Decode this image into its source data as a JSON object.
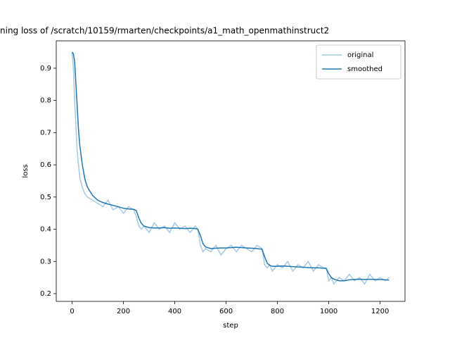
{
  "chart_data": {
    "type": "line",
    "title": "ning loss of /scratch/10159/rmarten/checkpoints/a1_math_openmathinstruct2",
    "x_label": "step",
    "y_label": "loss",
    "x": [
      0,
      5,
      10,
      15,
      20,
      25,
      30,
      40,
      50,
      60,
      80,
      100,
      120,
      140,
      160,
      180,
      200,
      220,
      240,
      250,
      260,
      270,
      280,
      300,
      320,
      340,
      360,
      380,
      400,
      420,
      440,
      460,
      480,
      490,
      500,
      510,
      520,
      540,
      560,
      580,
      600,
      620,
      640,
      660,
      680,
      700,
      720,
      740,
      750,
      760,
      770,
      780,
      800,
      820,
      840,
      860,
      880,
      900,
      920,
      940,
      960,
      980,
      990,
      1000,
      1010,
      1020,
      1040,
      1060,
      1080,
      1100,
      1120,
      1140,
      1160,
      1180,
      1200,
      1220,
      1235
    ],
    "series": [
      {
        "name": "original",
        "color": "#a6c8e3",
        "values": [
          0.95,
          0.9,
          0.8,
          0.72,
          0.64,
          0.6,
          0.56,
          0.53,
          0.51,
          0.5,
          0.49,
          0.48,
          0.47,
          0.49,
          0.46,
          0.47,
          0.45,
          0.47,
          0.46,
          0.44,
          0.41,
          0.4,
          0.41,
          0.39,
          0.42,
          0.4,
          0.41,
          0.39,
          0.42,
          0.4,
          0.41,
          0.39,
          0.41,
          0.4,
          0.35,
          0.33,
          0.34,
          0.33,
          0.35,
          0.32,
          0.34,
          0.35,
          0.33,
          0.35,
          0.34,
          0.33,
          0.35,
          0.34,
          0.29,
          0.28,
          0.29,
          0.27,
          0.29,
          0.28,
          0.3,
          0.27,
          0.29,
          0.28,
          0.3,
          0.27,
          0.29,
          0.28,
          0.28,
          0.24,
          0.25,
          0.23,
          0.25,
          0.24,
          0.26,
          0.24,
          0.25,
          0.23,
          0.26,
          0.24,
          0.25,
          0.24,
          0.25
        ]
      },
      {
        "name": "smoothed",
        "color": "#1f77b4",
        "values": [
          0.95,
          0.945,
          0.92,
          0.85,
          0.78,
          0.71,
          0.66,
          0.6,
          0.555,
          0.53,
          0.505,
          0.49,
          0.483,
          0.478,
          0.474,
          0.47,
          0.465,
          0.463,
          0.462,
          0.458,
          0.435,
          0.418,
          0.41,
          0.405,
          0.404,
          0.404,
          0.405,
          0.403,
          0.404,
          0.403,
          0.402,
          0.403,
          0.402,
          0.4,
          0.38,
          0.355,
          0.345,
          0.34,
          0.341,
          0.342,
          0.342,
          0.343,
          0.344,
          0.343,
          0.342,
          0.341,
          0.34,
          0.338,
          0.315,
          0.295,
          0.288,
          0.285,
          0.285,
          0.286,
          0.285,
          0.284,
          0.283,
          0.282,
          0.281,
          0.28,
          0.28,
          0.279,
          0.278,
          0.262,
          0.25,
          0.245,
          0.24,
          0.24,
          0.243,
          0.244,
          0.245,
          0.244,
          0.245,
          0.244,
          0.244,
          0.243,
          0.242
        ]
      }
    ],
    "xlim": [
      -61.7,
      1297
    ],
    "ylim": [
      0.176,
      0.985
    ],
    "xticks": [
      0,
      200,
      400,
      600,
      800,
      1000,
      1200
    ],
    "yticks": [
      0.2,
      0.3,
      0.4,
      0.5,
      0.6,
      0.7,
      0.8,
      0.9
    ],
    "legend": "upper right"
  }
}
